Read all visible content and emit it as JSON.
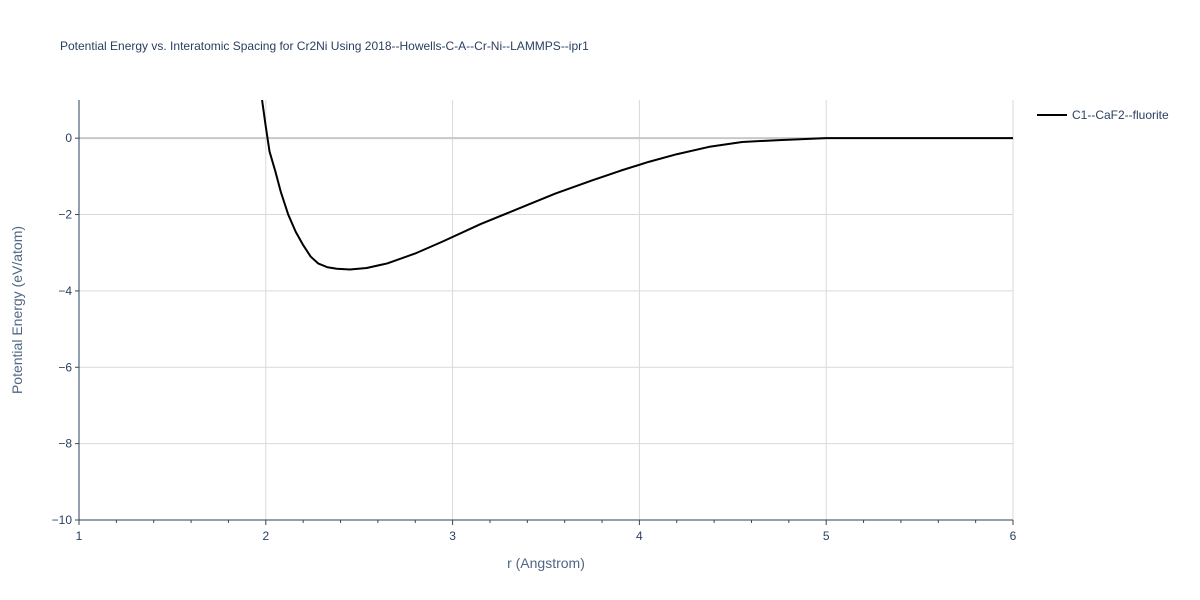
{
  "chart_data": {
    "type": "line",
    "title": "Potential Energy vs. Interatomic Spacing for Cr2Ni Using 2018--Howells-C-A--Cr-Ni--LAMMPS--ipr1",
    "xlabel": "r (Angstrom)",
    "ylabel": "Potential Energy (eV/atom)",
    "xlim": [
      1,
      6
    ],
    "ylim": [
      -10,
      1
    ],
    "x_ticks": [
      1,
      2,
      3,
      4,
      5,
      6
    ],
    "y_ticks": [
      -10,
      -8,
      -6,
      -4,
      -2,
      0
    ],
    "x_tick_labels": [
      "1",
      "2",
      "3",
      "4",
      "5",
      "6"
    ],
    "y_tick_labels": [
      "−10",
      "−8",
      "−6",
      "−4",
      "−2",
      "0"
    ],
    "grid": true,
    "legend_position": "top-right",
    "series": [
      {
        "name": "C1--CaF2--fluorite",
        "color": "#000000",
        "x": [
          1.98,
          2.0,
          2.02,
          2.05,
          2.08,
          2.12,
          2.16,
          2.2,
          2.24,
          2.28,
          2.33,
          2.38,
          2.45,
          2.54,
          2.65,
          2.8,
          2.95,
          3.15,
          3.35,
          3.55,
          3.75,
          3.9,
          4.05,
          4.2,
          4.38,
          4.55,
          4.75,
          5.0,
          5.25,
          5.5,
          5.75,
          6.0
        ],
        "y": [
          1.0,
          0.3,
          -0.35,
          -0.85,
          -1.4,
          -2.0,
          -2.45,
          -2.8,
          -3.1,
          -3.28,
          -3.38,
          -3.42,
          -3.44,
          -3.4,
          -3.28,
          -3.02,
          -2.7,
          -2.25,
          -1.85,
          -1.45,
          -1.1,
          -0.85,
          -0.62,
          -0.42,
          -0.22,
          -0.1,
          -0.05,
          0.0,
          0.0,
          0.0,
          0.0,
          0.0
        ]
      }
    ]
  }
}
